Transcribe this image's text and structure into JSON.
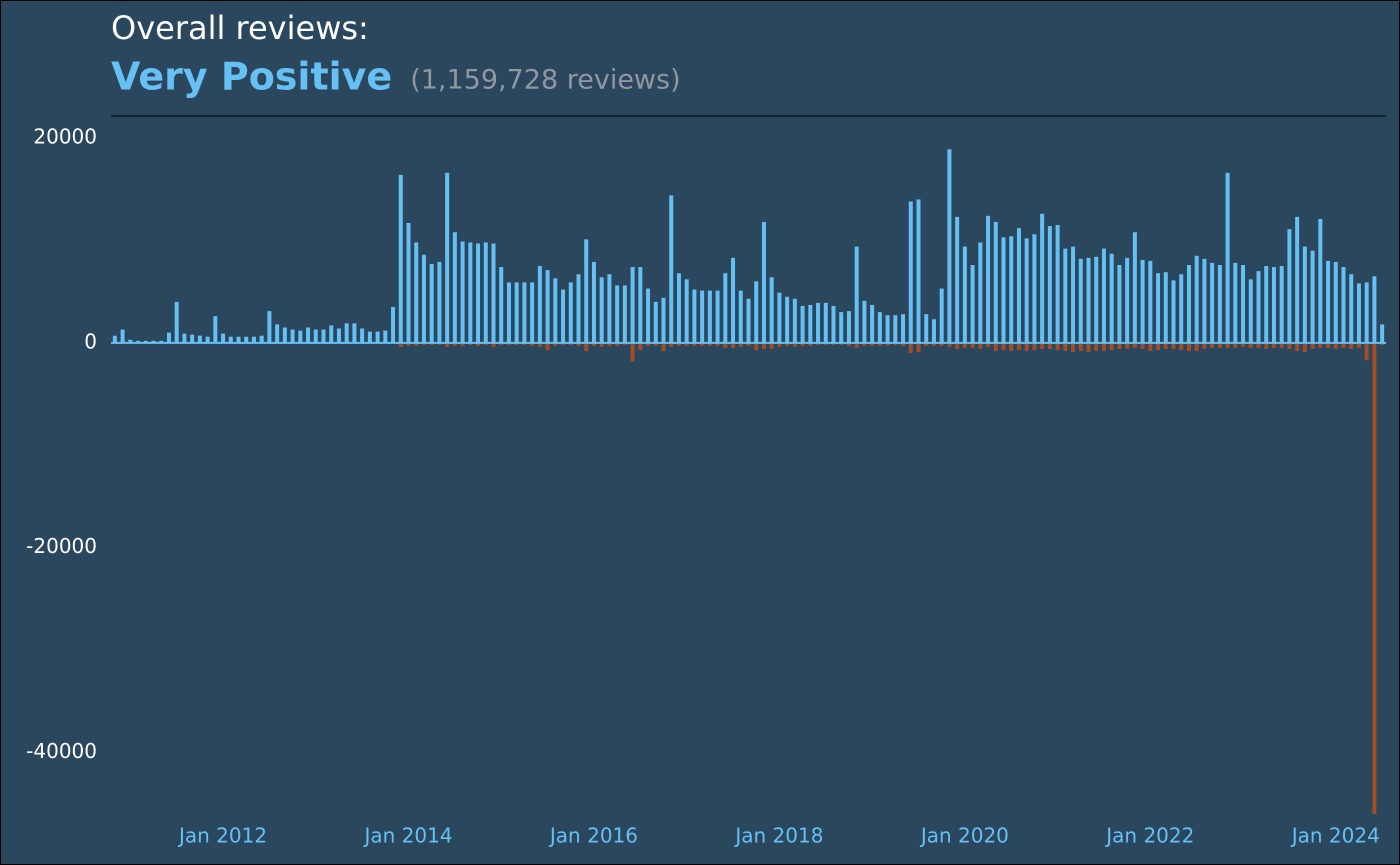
{
  "chart_data": {
    "type": "bar",
    "title": "Overall reviews:",
    "rating": "Very Positive",
    "review_count": "(1,159,728 reviews)",
    "categories": [
      null,
      null,
      null,
      null,
      null,
      null,
      null,
      null,
      null,
      null,
      null,
      null,
      null,
      null,
      "Jan 2012",
      null,
      null,
      null,
      null,
      null,
      null,
      null,
      null,
      null,
      null,
      null,
      null,
      null,
      null,
      null,
      null,
      null,
      null,
      null,
      null,
      null,
      null,
      null,
      "Jan 2014",
      null,
      null,
      null,
      null,
      null,
      null,
      null,
      null,
      null,
      null,
      null,
      null,
      null,
      null,
      null,
      null,
      null,
      null,
      null,
      null,
      null,
      null,
      null,
      "Jan 2016",
      null,
      null,
      null,
      null,
      null,
      null,
      null,
      null,
      null,
      null,
      null,
      null,
      null,
      null,
      null,
      null,
      null,
      null,
      null,
      null,
      null,
      null,
      null,
      "Jan 2018",
      null,
      null,
      null,
      null,
      null,
      null,
      null,
      null,
      null,
      null,
      null,
      null,
      null,
      null,
      null,
      null,
      null,
      null,
      null,
      null,
      null,
      null,
      null,
      "Jan 2020",
      null,
      null,
      null,
      null,
      null,
      null,
      null,
      null,
      null,
      null,
      null,
      null,
      null,
      null,
      null,
      null,
      null,
      null,
      null,
      null,
      null,
      null,
      null,
      "Jan 2022",
      null,
      null,
      null,
      null,
      null,
      null,
      null,
      null,
      null,
      null,
      null,
      null,
      null,
      null,
      null,
      null,
      null,
      null,
      null,
      null,
      null,
      null,
      null,
      "Jan 2024",
      null,
      null,
      null,
      null,
      null,
      null
    ],
    "series": [
      {
        "color": "#66c0f4",
        "values": [
          700,
          1300,
          300,
          200,
          200,
          200,
          200,
          1000,
          4000,
          900,
          800,
          700,
          600,
          2600,
          900,
          600,
          600,
          600,
          600,
          700,
          3100,
          1800,
          1500,
          1300,
          1200,
          1500,
          1300,
          1300,
          1700,
          1400,
          1900,
          1900,
          1400,
          1100,
          1100,
          1200,
          3500,
          16400,
          11700,
          9800,
          8600,
          7700,
          7900,
          16600,
          10800,
          9900,
          9800,
          9700,
          9800,
          9700,
          7400,
          5900,
          5900,
          5900,
          5900,
          7500,
          7100,
          6300,
          5200,
          5900,
          6700,
          10100,
          7900,
          6400,
          6700,
          5600,
          5600,
          7400,
          7400,
          5300,
          4000,
          4400,
          14400,
          6800,
          6200,
          5200,
          5100,
          5100,
          5100,
          6800,
          8300,
          5100,
          4300,
          6000,
          11800,
          6400,
          4900,
          4500,
          4300,
          3600,
          3700,
          3900,
          3900,
          3600,
          3000,
          3100,
          9400,
          4100,
          3700,
          3000,
          2700,
          2700,
          2800,
          13800,
          14000,
          2800,
          2300,
          5300,
          18900,
          12300,
          9400,
          7600,
          9800,
          12400,
          11800,
          10300,
          10400,
          11200,
          10200,
          10600,
          12600,
          11400,
          11500,
          9200,
          9400,
          8200,
          8300,
          8400,
          9200,
          8700,
          7600,
          8300,
          10800,
          8100,
          8000,
          6800,
          6900,
          6100,
          6700,
          7600,
          8500,
          8200,
          7800,
          7600,
          16600,
          7800,
          7600,
          6200,
          7000,
          7500,
          7400,
          7500,
          11100,
          12300,
          9400,
          9000,
          12100,
          8000,
          7900,
          7400,
          6700,
          5800,
          5900,
          6500,
          1800
        ]
      },
      {
        "color": "#a34c25",
        "values": [
          0,
          0,
          0,
          0,
          0,
          0,
          0,
          -50,
          -100,
          0,
          0,
          0,
          0,
          -50,
          0,
          0,
          0,
          0,
          0,
          0,
          -100,
          -50,
          -50,
          -50,
          -50,
          -50,
          -50,
          -50,
          -50,
          -50,
          -50,
          -100,
          -50,
          -50,
          -50,
          -50,
          -100,
          -400,
          -300,
          -300,
          -200,
          -200,
          -200,
          -400,
          -300,
          -300,
          -200,
          -300,
          -200,
          -400,
          -200,
          -200,
          -200,
          -200,
          -300,
          -400,
          -700,
          -300,
          -200,
          -200,
          -300,
          -800,
          -300,
          -400,
          -300,
          -300,
          -200,
          -1800,
          -700,
          -300,
          -300,
          -800,
          -400,
          -300,
          -300,
          -300,
          -300,
          -300,
          -300,
          -500,
          -500,
          -400,
          -300,
          -700,
          -600,
          -600,
          -400,
          -300,
          -400,
          -300,
          -300,
          -200,
          -200,
          -200,
          -200,
          -300,
          -500,
          -300,
          -300,
          -300,
          -300,
          -200,
          -300,
          -1000,
          -900,
          -300,
          -300,
          -300,
          -400,
          -600,
          -500,
          -500,
          -600,
          -400,
          -800,
          -700,
          -800,
          -700,
          -800,
          -700,
          -600,
          -600,
          -700,
          -800,
          -900,
          -800,
          -900,
          -800,
          -800,
          -700,
          -600,
          -600,
          -500,
          -600,
          -800,
          -700,
          -600,
          -600,
          -700,
          -800,
          -800,
          -600,
          -500,
          -500,
          -500,
          -500,
          -400,
          -500,
          -500,
          -600,
          -500,
          -500,
          -600,
          -800,
          -900,
          -600,
          -500,
          -500,
          -600,
          -500,
          -600,
          -500,
          -1700,
          -46000,
          -200
        ]
      }
    ],
    "ylim": [
      -50000,
      22000
    ],
    "yticks": [
      20000,
      0,
      -20000,
      -40000
    ],
    "grid": false
  }
}
